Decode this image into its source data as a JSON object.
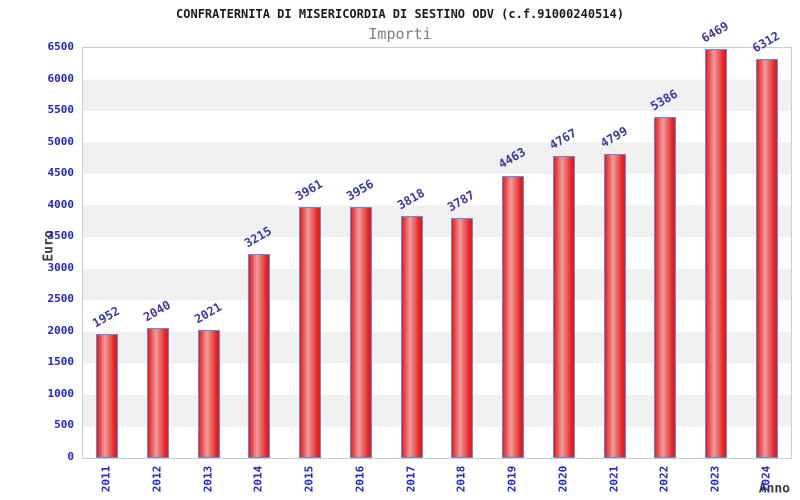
{
  "header": {
    "title": "CONFRATERNITA DI MISERICORDIA DI SESTINO ODV (c.f.91000240514)",
    "subtitle": "Importi"
  },
  "chart_data": {
    "type": "bar",
    "title": "CONFRATERNITA DI MISERICORDIA DI SESTINO ODV (c.f.91000240514)",
    "subtitle": "Importi",
    "categories": [
      "2011",
      "2012",
      "2013",
      "2014",
      "2015",
      "2016",
      "2017",
      "2018",
      "2019",
      "2020",
      "2021",
      "2022",
      "2023",
      "2024"
    ],
    "values": [
      1952,
      2040,
      2021,
      3215,
      3961,
      3956,
      3818,
      3787,
      4463,
      4767,
      4799,
      5386,
      6469,
      6312
    ],
    "xlabel": "Anno",
    "ylabel": "Euro",
    "ylim": [
      0,
      6500
    ],
    "ytick_step": 500,
    "grid": "alternating-bands",
    "legend": "none",
    "bar_labels_rotation_deg": -30,
    "xtick_rotation_deg": -90
  },
  "colors": {
    "title": "#1a1a1a",
    "subtitle": "#7f7f7f",
    "axis_title": "#3c3c3c",
    "tick_label": "#2424cc",
    "value_label": "#3a3a9f",
    "band": "#f0f0f0",
    "plot_border": "#cccccc",
    "bar_fill": "#e81a1a",
    "bar_highlight": "#ec9d9d",
    "bar_border": "#5a8fe8"
  }
}
